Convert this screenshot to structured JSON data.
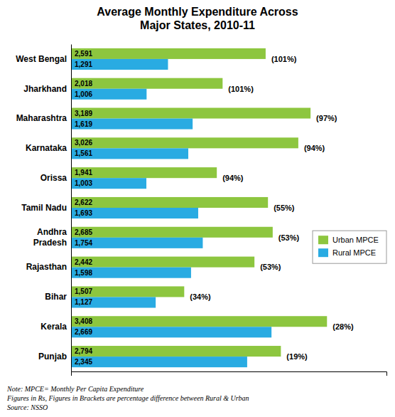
{
  "chart_data": {
    "type": "bar",
    "orientation": "horizontal",
    "title": "Average Monthly Expenditure Across\nMajor States, 2010-11",
    "categories": [
      "West Bengal",
      "Jharkhand",
      "Maharashtra",
      "Karnataka",
      "Orissa",
      "Tamil Nadu",
      "Andhra\nPradesh",
      "Rajasthan",
      "Bihar",
      "Kerala",
      "Punjab"
    ],
    "series": [
      {
        "name": "Urban MPCE",
        "color": "#8DC63F",
        "values": [
          2591,
          2018,
          3189,
          3026,
          1941,
          2622,
          2685,
          2442,
          1507,
          3408,
          2794
        ],
        "value_labels": [
          "2,591",
          "2,018",
          "3,189",
          "3,026",
          "1,941",
          "2,622",
          "2,685",
          "2,442",
          "1,507",
          "3,408",
          "2,794"
        ]
      },
      {
        "name": "Rural MPCE",
        "color": "#29ABE2",
        "values": [
          1291,
          1006,
          1619,
          1561,
          1003,
          1693,
          1754,
          1598,
          1127,
          2669,
          2345
        ],
        "value_labels": [
          "1,291",
          "1,006",
          "1,619",
          "1,561",
          "1,003",
          "1,693",
          "1,754",
          "1,598",
          "1,127",
          "2,669",
          "2,345"
        ]
      }
    ],
    "annotations": [
      "(101%)",
      "(101%)",
      "(97%)",
      "(94%)",
      "(94%)",
      "(55%)",
      "(53%)",
      "(53%)",
      "(34%)",
      "(28%)",
      "(19%)"
    ],
    "caption": "Note: MPCE= Monthly Per Capita Expenditure\nFigures in Rs, Figures in Brackets are percentage difference between Rural & Urban\nSource: NSSO",
    "xlim": [
      0,
      4200
    ],
    "data_labels": true,
    "tick_labels": "y",
    "grid": false,
    "legend": "right"
  }
}
